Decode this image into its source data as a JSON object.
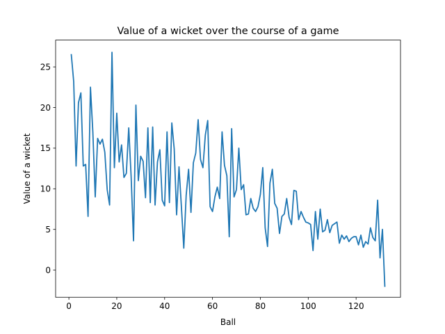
{
  "chart_data": {
    "type": "line",
    "title": "Value of a wicket over the course of a game",
    "xlabel": "Ball",
    "ylabel": "Value of a wicket",
    "xlim": [
      -5.55,
      138.55
    ],
    "ylim": [
      -3.35,
      28.3
    ],
    "grid": false,
    "legend": "none",
    "line_color": "#1f77b4",
    "xticks": [
      0,
      20,
      40,
      60,
      80,
      100,
      120
    ],
    "yticks": [
      0,
      5,
      10,
      15,
      20,
      25
    ],
    "series": [
      {
        "x": [
          1,
          2,
          3,
          4,
          5,
          6,
          7,
          8,
          9,
          10,
          11,
          12,
          13,
          14,
          15,
          16,
          17,
          18,
          19,
          20,
          21,
          22,
          23,
          24,
          25,
          26,
          27,
          28,
          29,
          30,
          31,
          32,
          33,
          34,
          35,
          36,
          37,
          38,
          39,
          40,
          41,
          42,
          43,
          44,
          45,
          46,
          47,
          48,
          49,
          50,
          51,
          52,
          53,
          54,
          55,
          56,
          57,
          58,
          59,
          60,
          61,
          62,
          63,
          64,
          65,
          66,
          67,
          68,
          69,
          70,
          71,
          72,
          73,
          74,
          75,
          76,
          77,
          78,
          79,
          80,
          81,
          82,
          83,
          84,
          85,
          86,
          87,
          88,
          89,
          90,
          91,
          92,
          93,
          94,
          95,
          96,
          97,
          98,
          99,
          100,
          101,
          102,
          103,
          104,
          105,
          106,
          107,
          108,
          109,
          110,
          111,
          112,
          113,
          114,
          115,
          116,
          117,
          118,
          119,
          120,
          121,
          122,
          123,
          124,
          125,
          126,
          127,
          128,
          129,
          130,
          131,
          132
        ],
        "y": [
          26.5,
          23.2,
          12.8,
          20.6,
          21.8,
          12.8,
          13.0,
          6.6,
          22.5,
          17.0,
          9.0,
          16.2,
          15.5,
          16.1,
          14.5,
          9.9,
          8.0,
          26.8,
          12.6,
          19.3,
          13.3,
          15.4,
          11.4,
          11.9,
          17.5,
          11.5,
          3.6,
          20.3,
          11.0,
          14.0,
          13.4,
          8.9,
          17.5,
          8.3,
          17.6,
          8.0,
          13.3,
          14.8,
          8.6,
          7.9,
          17.0,
          8.3,
          18.1,
          14.9,
          6.8,
          12.7,
          7.8,
          2.7,
          9.2,
          12.4,
          7.1,
          13.2,
          14.4,
          18.5,
          13.6,
          12.6,
          16.6,
          18.4,
          7.8,
          7.2,
          9.0,
          10.2,
          8.8,
          17.0,
          12.9,
          11.6,
          4.1,
          17.4,
          9.0,
          9.9,
          15.0,
          9.9,
          10.5,
          6.8,
          6.9,
          8.8,
          7.6,
          7.2,
          7.8,
          9.3,
          12.6,
          5.2,
          2.9,
          10.7,
          12.4,
          8.2,
          7.6,
          4.5,
          6.6,
          6.9,
          8.8,
          6.5,
          5.6,
          9.8,
          9.7,
          6.2,
          7.2,
          6.5,
          5.9,
          5.8,
          5.6,
          2.4,
          7.2,
          3.8,
          7.5,
          4.7,
          4.9,
          6.2,
          4.6,
          5.5,
          5.7,
          5.9,
          3.3,
          4.3,
          3.8,
          4.2,
          3.5,
          3.9,
          4.1,
          4.1,
          3.1,
          4.3,
          2.8,
          3.5,
          3.2,
          5.2,
          4.0,
          3.6,
          8.6,
          1.5,
          5.0,
          -2.0
        ]
      }
    ]
  }
}
